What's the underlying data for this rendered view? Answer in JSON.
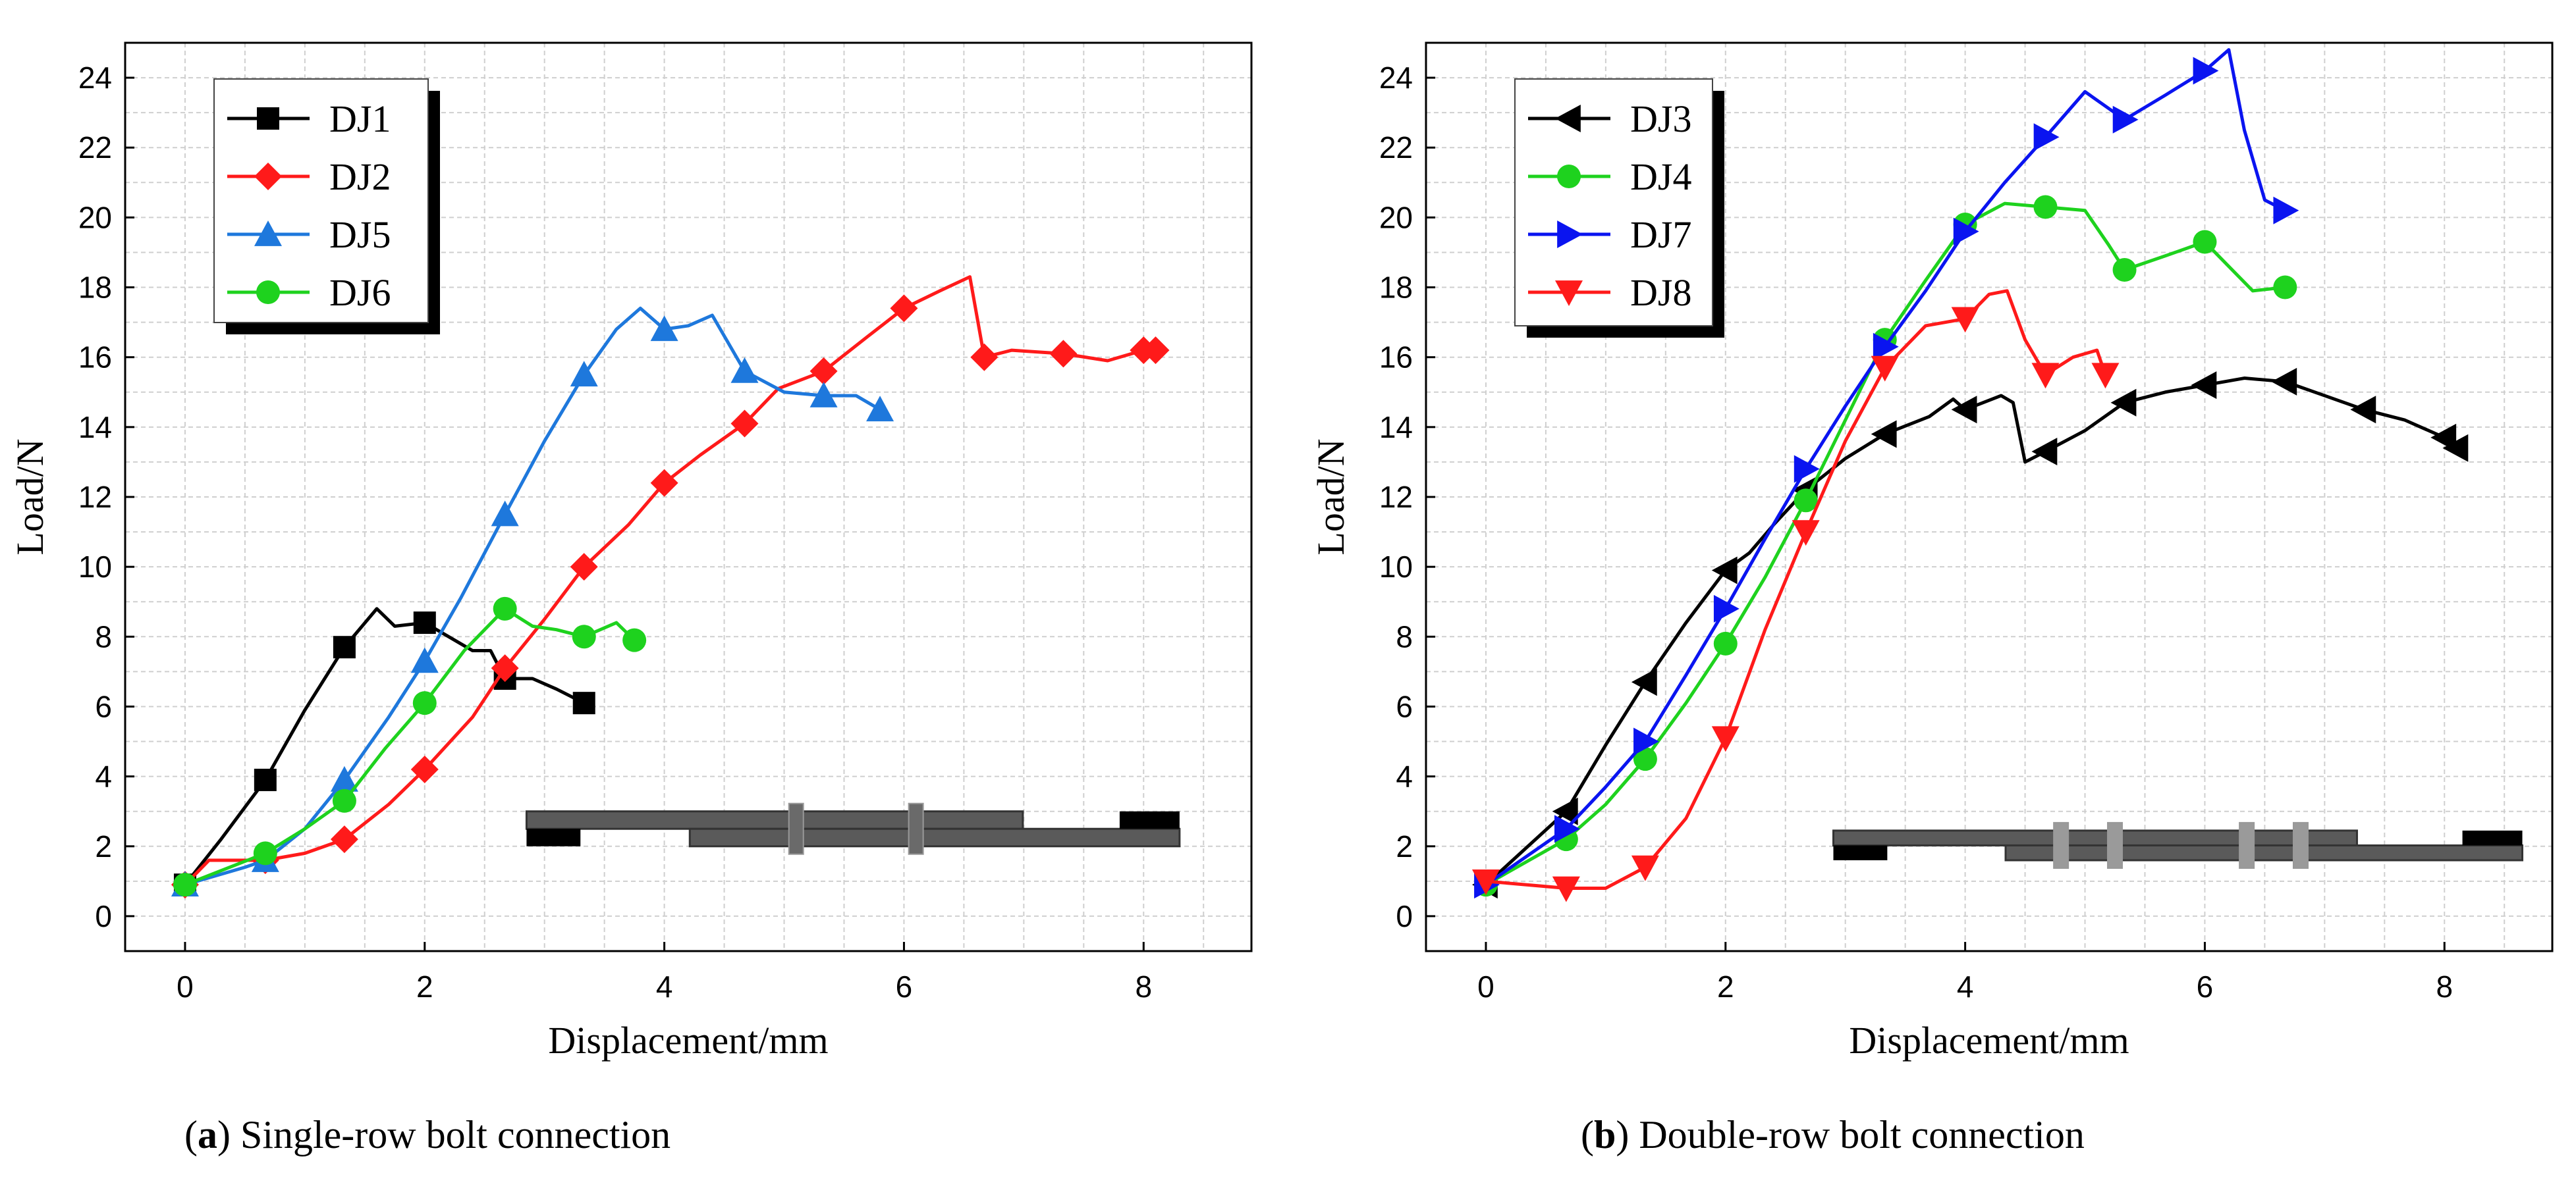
{
  "captions": [
    {
      "letter": "a",
      "text": "Single-row bolt connection"
    },
    {
      "letter": "b",
      "text": "Double-row bolt connection"
    }
  ],
  "colors": {
    "black": "#000000",
    "red": "#ff1a1a",
    "blue_light": "#1e78dc",
    "green": "#1ed21e",
    "blue": "#0a14f0"
  },
  "chart_data": [
    {
      "type": "line",
      "title": "",
      "xlabel": "Displacement/mm",
      "ylabel": "Load/N",
      "xlim": [
        -0.5,
        8.9
      ],
      "ylim": [
        -1,
        25
      ],
      "xticks": [
        0,
        2,
        4,
        6,
        8
      ],
      "yticks": [
        0,
        2,
        4,
        6,
        8,
        10,
        12,
        14,
        16,
        18,
        20,
        22,
        24
      ],
      "grid": true,
      "legend_position": "top-left",
      "series": [
        {
          "name": "DJ1",
          "color": "#000000",
          "marker": "square",
          "x": [
            0,
            0.3,
            0.67,
            1.0,
            1.33,
            1.6,
            1.75,
            2.0,
            2.2,
            2.4,
            2.55,
            2.67,
            2.9,
            3.1,
            3.33
          ],
          "y": [
            0.9,
            2.2,
            3.9,
            5.9,
            7.7,
            8.8,
            8.3,
            8.4,
            8.0,
            7.6,
            7.6,
            6.8,
            6.8,
            6.5,
            6.1
          ],
          "markers": [
            [
              0,
              0.9
            ],
            [
              0.67,
              3.9
            ],
            [
              1.33,
              7.7
            ],
            [
              2.0,
              8.4
            ],
            [
              2.67,
              6.8
            ],
            [
              3.33,
              6.1
            ]
          ]
        },
        {
          "name": "DJ2",
          "color": "#ff1a1a",
          "marker": "diamond",
          "x": [
            0,
            0.2,
            0.67,
            1.0,
            1.33,
            1.7,
            2.0,
            2.4,
            2.67,
            3.0,
            3.33,
            3.7,
            4.0,
            4.3,
            4.67,
            4.95,
            5.33,
            5.7,
            6.0,
            6.3,
            6.55,
            6.67,
            6.9,
            7.33,
            7.7,
            8.0,
            8.1
          ],
          "y": [
            0.9,
            1.6,
            1.6,
            1.8,
            2.2,
            3.2,
            4.2,
            5.7,
            7.1,
            8.5,
            10.0,
            11.2,
            12.4,
            13.2,
            14.1,
            15.1,
            15.6,
            16.6,
            17.4,
            17.9,
            18.3,
            16.0,
            16.2,
            16.1,
            15.9,
            16.2,
            16.2
          ],
          "markers": [
            [
              0,
              0.9
            ],
            [
              0.67,
              1.6
            ],
            [
              1.33,
              2.2
            ],
            [
              2.0,
              4.2
            ],
            [
              2.67,
              7.1
            ],
            [
              3.33,
              10.0
            ],
            [
              4.0,
              12.4
            ],
            [
              4.67,
              14.1
            ],
            [
              5.33,
              15.6
            ],
            [
              6.0,
              17.4
            ],
            [
              6.67,
              16.0
            ],
            [
              7.33,
              16.1
            ],
            [
              8.0,
              16.2
            ],
            [
              8.1,
              16.2
            ]
          ]
        },
        {
          "name": "DJ5",
          "color": "#1e78dc",
          "marker": "triangle-up",
          "x": [
            0,
            0.5,
            0.67,
            1.0,
            1.33,
            1.7,
            2.0,
            2.3,
            2.67,
            3.0,
            3.33,
            3.6,
            3.8,
            4.0,
            4.2,
            4.4,
            4.67,
            5.0,
            5.33,
            5.6,
            5.8
          ],
          "y": [
            0.9,
            1.4,
            1.6,
            2.5,
            3.9,
            5.7,
            7.3,
            9.1,
            11.5,
            13.6,
            15.5,
            16.8,
            17.4,
            16.8,
            16.9,
            17.2,
            15.6,
            15.0,
            14.9,
            14.9,
            14.5
          ],
          "markers": [
            [
              0,
              0.9
            ],
            [
              0.67,
              1.6
            ],
            [
              1.33,
              3.9
            ],
            [
              2.0,
              7.3
            ],
            [
              2.67,
              11.5
            ],
            [
              3.33,
              15.5
            ],
            [
              4.0,
              16.8
            ],
            [
              4.67,
              15.6
            ],
            [
              5.33,
              14.9
            ],
            [
              5.8,
              14.5
            ]
          ]
        },
        {
          "name": "DJ6",
          "color": "#1ed21e",
          "marker": "circle",
          "x": [
            0,
            0.67,
            1.0,
            1.33,
            1.67,
            2.0,
            2.33,
            2.67,
            2.9,
            3.1,
            3.33,
            3.6,
            3.75
          ],
          "y": [
            0.9,
            1.8,
            2.5,
            3.3,
            4.8,
            6.1,
            7.6,
            8.8,
            8.3,
            8.2,
            8.0,
            8.4,
            7.9
          ],
          "markers": [
            [
              0,
              0.9
            ],
            [
              0.67,
              1.8
            ],
            [
              1.33,
              3.3
            ],
            [
              2.0,
              6.1
            ],
            [
              2.67,
              8.8
            ],
            [
              3.33,
              8.0
            ],
            [
              3.75,
              7.9
            ]
          ]
        }
      ]
    },
    {
      "type": "line",
      "title": "",
      "xlabel": "Displacement/mm",
      "ylabel": "Load/N",
      "xlim": [
        -0.5,
        8.9
      ],
      "ylim": [
        -1,
        25
      ],
      "xticks": [
        0,
        2,
        4,
        6,
        8
      ],
      "yticks": [
        0,
        2,
        4,
        6,
        8,
        10,
        12,
        14,
        16,
        18,
        20,
        22,
        24
      ],
      "grid": true,
      "legend_position": "top-left",
      "series": [
        {
          "name": "DJ3",
          "color": "#000000",
          "marker": "triangle-left",
          "x": [
            0,
            0.67,
            1.0,
            1.33,
            1.67,
            2.0,
            2.2,
            2.4,
            2.67,
            3.0,
            3.33,
            3.7,
            3.9,
            4.0,
            4.3,
            4.4,
            4.5,
            4.67,
            5.0,
            5.33,
            5.67,
            6.0,
            6.33,
            6.67,
            7.0,
            7.33,
            7.67,
            8.0,
            8.1
          ],
          "y": [
            0.9,
            3.0,
            4.9,
            6.7,
            8.4,
            9.9,
            10.4,
            11.2,
            12.2,
            13.1,
            13.8,
            14.3,
            14.8,
            14.5,
            14.9,
            14.7,
            13.0,
            13.3,
            13.9,
            14.7,
            15.0,
            15.2,
            15.4,
            15.3,
            14.9,
            14.5,
            14.2,
            13.7,
            13.4
          ],
          "markers": [
            [
              0,
              0.9
            ],
            [
              0.67,
              3.0
            ],
            [
              1.33,
              6.7
            ],
            [
              2.0,
              9.9
            ],
            [
              2.67,
              12.2
            ],
            [
              3.33,
              13.8
            ],
            [
              4.0,
              14.5
            ],
            [
              4.67,
              13.3
            ],
            [
              5.33,
              14.7
            ],
            [
              6.0,
              15.2
            ],
            [
              6.67,
              15.3
            ],
            [
              7.33,
              14.5
            ],
            [
              8.0,
              13.7
            ],
            [
              8.1,
              13.4
            ]
          ]
        },
        {
          "name": "DJ4",
          "color": "#1ed21e",
          "marker": "circle",
          "x": [
            0,
            0.67,
            1.0,
            1.33,
            1.67,
            2.0,
            2.33,
            2.67,
            3.0,
            3.33,
            3.67,
            4.0,
            4.33,
            4.67,
            5.0,
            5.2,
            5.33,
            5.67,
            6.0,
            6.2,
            6.4,
            6.67
          ],
          "y": [
            0.9,
            2.2,
            3.2,
            4.5,
            6.1,
            7.8,
            9.7,
            11.9,
            14.2,
            16.5,
            18.2,
            19.8,
            20.4,
            20.3,
            20.2,
            19.2,
            18.5,
            18.9,
            19.3,
            18.6,
            17.9,
            18.0
          ],
          "markers": [
            [
              0,
              0.9
            ],
            [
              0.67,
              2.2
            ],
            [
              1.33,
              4.5
            ],
            [
              2.0,
              7.8
            ],
            [
              2.67,
              11.9
            ],
            [
              3.33,
              16.5
            ],
            [
              4.0,
              19.8
            ],
            [
              4.67,
              20.3
            ],
            [
              5.33,
              18.5
            ],
            [
              6.0,
              19.3
            ],
            [
              6.67,
              18.0
            ]
          ]
        },
        {
          "name": "DJ7",
          "color": "#0a14f0",
          "marker": "triangle-right",
          "x": [
            0,
            0.67,
            1.0,
            1.33,
            1.67,
            2.0,
            2.33,
            2.67,
            3.0,
            3.33,
            3.67,
            4.0,
            4.33,
            4.67,
            5.0,
            5.33,
            5.67,
            6.0,
            6.2,
            6.33,
            6.5,
            6.67
          ],
          "y": [
            0.9,
            2.5,
            3.7,
            5.0,
            6.9,
            8.8,
            10.8,
            12.8,
            14.6,
            16.3,
            17.9,
            19.6,
            21.0,
            22.3,
            23.6,
            22.8,
            23.5,
            24.2,
            24.8,
            22.5,
            20.5,
            20.2
          ],
          "markers": [
            [
              0,
              0.9
            ],
            [
              0.67,
              2.5
            ],
            [
              1.33,
              5.0
            ],
            [
              2.0,
              8.8
            ],
            [
              2.67,
              12.8
            ],
            [
              3.33,
              16.3
            ],
            [
              4.0,
              19.6
            ],
            [
              4.67,
              22.3
            ],
            [
              5.33,
              22.8
            ],
            [
              6.0,
              24.2
            ],
            [
              6.67,
              20.2
            ]
          ]
        },
        {
          "name": "DJ8",
          "color": "#ff1a1a",
          "marker": "triangle-down",
          "x": [
            0,
            0.67,
            1.0,
            1.33,
            1.67,
            2.0,
            2.33,
            2.67,
            3.0,
            3.33,
            3.67,
            4.0,
            4.2,
            4.35,
            4.5,
            4.67,
            4.9,
            5.1,
            5.17
          ],
          "y": [
            1.0,
            0.8,
            0.8,
            1.4,
            2.8,
            5.1,
            8.2,
            11.0,
            13.6,
            15.7,
            16.9,
            17.1,
            17.8,
            17.9,
            16.5,
            15.5,
            16.0,
            16.2,
            15.5
          ],
          "markers": [
            [
              0,
              1.0
            ],
            [
              0.67,
              0.8
            ],
            [
              1.33,
              1.4
            ],
            [
              2.0,
              5.1
            ],
            [
              2.67,
              11.0
            ],
            [
              3.33,
              15.7
            ],
            [
              4.0,
              17.1
            ],
            [
              4.67,
              15.5
            ],
            [
              5.17,
              15.5
            ]
          ]
        }
      ]
    }
  ]
}
